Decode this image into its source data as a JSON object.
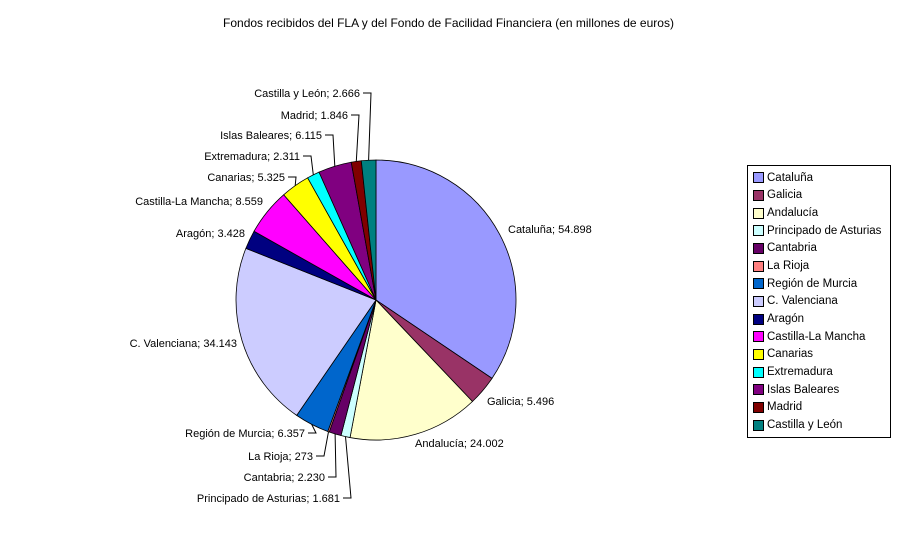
{
  "chart_data": {
    "type": "pie",
    "title": "Fondos recibidos del FLA y del Fondo de Facilidad Financiera (en millones de euros)",
    "unit": "millones de euros",
    "start_angle_deg": 0,
    "direction": "clockwise",
    "legend_position": "right",
    "points": [
      {
        "name": "Cataluña",
        "value": 54898,
        "label": "Cataluña; 54.898",
        "color": "#9999FF"
      },
      {
        "name": "Galicia",
        "value": 5496,
        "label": "Galicia; 5.496",
        "color": "#993366"
      },
      {
        "name": "Andalucía",
        "value": 24002,
        "label": "Andalucía; 24.002",
        "color": "#FFFFCC"
      },
      {
        "name": "Principado de Asturias",
        "value": 1681,
        "label": "Principado de Asturias; 1.681",
        "color": "#CCFFFF"
      },
      {
        "name": "Cantabria",
        "value": 2230,
        "label": "Cantabria; 2.230",
        "color": "#660066"
      },
      {
        "name": "La Rioja",
        "value": 273,
        "label": "La Rioja; 273",
        "color": "#FF8080"
      },
      {
        "name": "Región de Murcia",
        "value": 6357,
        "label": "Región de Murcia; 6.357",
        "color": "#0066CC"
      },
      {
        "name": "C. Valenciana",
        "value": 34143,
        "label": "C. Valenciana; 34.143",
        "color": "#CCCCFF"
      },
      {
        "name": "Aragón",
        "value": 3428,
        "label": "Aragón; 3.428",
        "color": "#000080"
      },
      {
        "name": "Castilla-La Mancha",
        "value": 8559,
        "label": "Castilla-La Mancha; 8.559",
        "color": "#FF00FF"
      },
      {
        "name": "Canarias",
        "value": 5325,
        "label": "Canarias; 5.325",
        "color": "#FFFF00"
      },
      {
        "name": "Extremadura",
        "value": 2311,
        "label": "Extremadura; 2.311",
        "color": "#00FFFF"
      },
      {
        "name": "Islas Baleares",
        "value": 6115,
        "label": "Islas Baleares; 6.115",
        "color": "#800080"
      },
      {
        "name": "Madrid",
        "value": 1846,
        "label": "Madrid; 1.846",
        "color": "#800000"
      },
      {
        "name": "Castilla y León",
        "value": 2666,
        "label": "Castilla y León; 2.666",
        "color": "#008080"
      }
    ]
  }
}
